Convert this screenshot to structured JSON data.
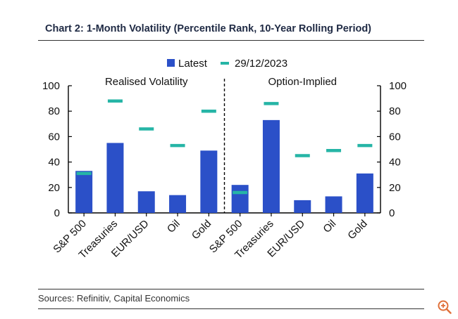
{
  "chart_data": {
    "type": "bar",
    "title": "Chart 2: 1-Month Volatility (Percentile Rank, 10-Year Rolling Period)",
    "legend": [
      "Latest",
      "29/12/2023"
    ],
    "legend_position": "top-center",
    "groups": [
      {
        "label": "Realised Volatility",
        "categories": [
          "S&P 500",
          "Treasuries",
          "EUR/USD",
          "Oil",
          "Gold"
        ],
        "latest": [
          33,
          55,
          17,
          14,
          49
        ],
        "prior": [
          31,
          88,
          66,
          53,
          80
        ]
      },
      {
        "label": "Option-Implied",
        "categories": [
          "S&P 500",
          "Treasuries",
          "EUR/USD",
          "Oil",
          "Gold"
        ],
        "latest": [
          22,
          73,
          10,
          13,
          31
        ],
        "prior": [
          16,
          86,
          45,
          49,
          53
        ]
      }
    ],
    "ylim": [
      0,
      100
    ],
    "yticks": [
      "0",
      "20",
      "40",
      "60",
      "80",
      "100"
    ],
    "grid": false,
    "colors": {
      "latest": "#2b50c8",
      "prior": "#26b5a6"
    }
  },
  "sources": "Sources: Refinitiv, Capital Economics",
  "icons": {
    "zoom": "zoom-in-icon"
  },
  "colors": {
    "accent": "#e0703a"
  }
}
